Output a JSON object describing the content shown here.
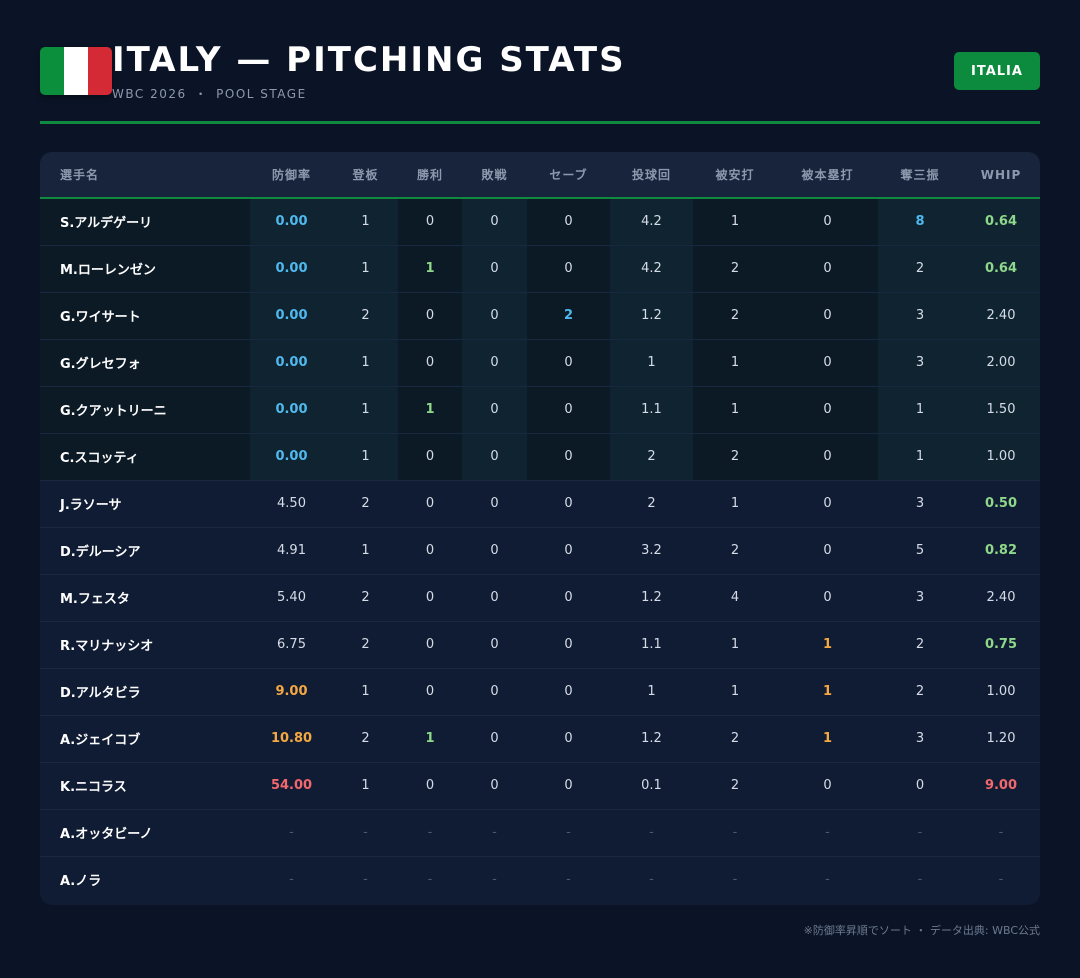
{
  "header": {
    "title": "ITALY — PITCHING STATS",
    "subtitle_left": "WBC 2026",
    "subtitle_sep": "・",
    "subtitle_right": "POOL STAGE",
    "badge": "ITALIA",
    "flag_colors": [
      "#0b8f3c",
      "#ffffff",
      "#d42a35"
    ]
  },
  "table": {
    "columns": [
      "選手名",
      "防御率",
      "登板",
      "勝利",
      "敗戦",
      "セーブ",
      "投球回",
      "被安打",
      "被本塁打",
      "奪三振",
      "WHIP"
    ],
    "rows": [
      {
        "name": "S.アルデゲーリ",
        "era": "0.00",
        "g": "1",
        "w": "0",
        "l": "0",
        "sv": "0",
        "ip": "4.2",
        "h": "1",
        "hr": "0",
        "so": "8",
        "whip": "0.64",
        "group": "top",
        "hl": {
          "era": "blue",
          "so": "blue",
          "whip": "green"
        }
      },
      {
        "name": "M.ローレンゼン",
        "era": "0.00",
        "g": "1",
        "w": "1",
        "l": "0",
        "sv": "0",
        "ip": "4.2",
        "h": "2",
        "hr": "0",
        "so": "2",
        "whip": "0.64",
        "group": "top",
        "hl": {
          "era": "blue",
          "w": "green",
          "whip": "green"
        }
      },
      {
        "name": "G.ワイサート",
        "era": "0.00",
        "g": "2",
        "w": "0",
        "l": "0",
        "sv": "2",
        "ip": "1.2",
        "h": "2",
        "hr": "0",
        "so": "3",
        "whip": "2.40",
        "group": "top",
        "hl": {
          "era": "blue",
          "sv": "blue"
        }
      },
      {
        "name": "G.グレセフォ",
        "era": "0.00",
        "g": "1",
        "w": "0",
        "l": "0",
        "sv": "0",
        "ip": "1",
        "h": "1",
        "hr": "0",
        "so": "3",
        "whip": "2.00",
        "group": "top",
        "hl": {
          "era": "blue"
        }
      },
      {
        "name": "G.クアットリーニ",
        "era": "0.00",
        "g": "1",
        "w": "1",
        "l": "0",
        "sv": "0",
        "ip": "1.1",
        "h": "1",
        "hr": "0",
        "so": "1",
        "whip": "1.50",
        "group": "top",
        "hl": {
          "era": "blue",
          "w": "green"
        }
      },
      {
        "name": "C.スコッティ",
        "era": "0.00",
        "g": "1",
        "w": "0",
        "l": "0",
        "sv": "0",
        "ip": "2",
        "h": "2",
        "hr": "0",
        "so": "1",
        "whip": "1.00",
        "group": "top",
        "hl": {
          "era": "blue"
        }
      },
      {
        "name": "J.ラソーサ",
        "era": "4.50",
        "g": "2",
        "w": "0",
        "l": "0",
        "sv": "0",
        "ip": "2",
        "h": "1",
        "hr": "0",
        "so": "3",
        "whip": "0.50",
        "group": "rest",
        "hl": {
          "whip": "green"
        }
      },
      {
        "name": "D.デルーシア",
        "era": "4.91",
        "g": "1",
        "w": "0",
        "l": "0",
        "sv": "0",
        "ip": "3.2",
        "h": "2",
        "hr": "0",
        "so": "5",
        "whip": "0.82",
        "group": "rest",
        "hl": {
          "whip": "green"
        }
      },
      {
        "name": "M.フェスタ",
        "era": "5.40",
        "g": "2",
        "w": "0",
        "l": "0",
        "sv": "0",
        "ip": "1.2",
        "h": "4",
        "hr": "0",
        "so": "3",
        "whip": "2.40",
        "group": "rest",
        "hl": {}
      },
      {
        "name": "R.マリナッシオ",
        "era": "6.75",
        "g": "2",
        "w": "0",
        "l": "0",
        "sv": "0",
        "ip": "1.1",
        "h": "1",
        "hr": "1",
        "so": "2",
        "whip": "0.75",
        "group": "rest",
        "hl": {
          "hr": "orange",
          "whip": "green"
        }
      },
      {
        "name": "D.アルタビラ",
        "era": "9.00",
        "g": "1",
        "w": "0",
        "l": "0",
        "sv": "0",
        "ip": "1",
        "h": "1",
        "hr": "1",
        "so": "2",
        "whip": "1.00",
        "group": "rest",
        "hl": {
          "era": "orange",
          "hr": "orange"
        }
      },
      {
        "name": "A.ジェイコブ",
        "era": "10.80",
        "g": "2",
        "w": "1",
        "l": "0",
        "sv": "0",
        "ip": "1.2",
        "h": "2",
        "hr": "1",
        "so": "3",
        "whip": "1.20",
        "group": "rest",
        "hl": {
          "era": "orange",
          "w": "green",
          "hr": "orange"
        }
      },
      {
        "name": "K.ニコラス",
        "era": "54.00",
        "g": "1",
        "w": "0",
        "l": "0",
        "sv": "0",
        "ip": "0.1",
        "h": "2",
        "hr": "0",
        "so": "0",
        "whip": "9.00",
        "group": "rest",
        "hl": {
          "era": "red",
          "whip": "red"
        }
      },
      {
        "name": "A.オッタビーノ",
        "era": "-",
        "g": "-",
        "w": "-",
        "l": "-",
        "sv": "-",
        "ip": "-",
        "h": "-",
        "hr": "-",
        "so": "-",
        "whip": "-",
        "group": "rest",
        "hl": {}
      },
      {
        "name": "A.ノラ",
        "era": "-",
        "g": "-",
        "w": "-",
        "l": "-",
        "sv": "-",
        "ip": "-",
        "h": "-",
        "hr": "-",
        "so": "-",
        "whip": "-",
        "group": "rest",
        "hl": {}
      }
    ]
  },
  "footnote": "※防御率昇順でソート ・ データ出典: WBC公式"
}
